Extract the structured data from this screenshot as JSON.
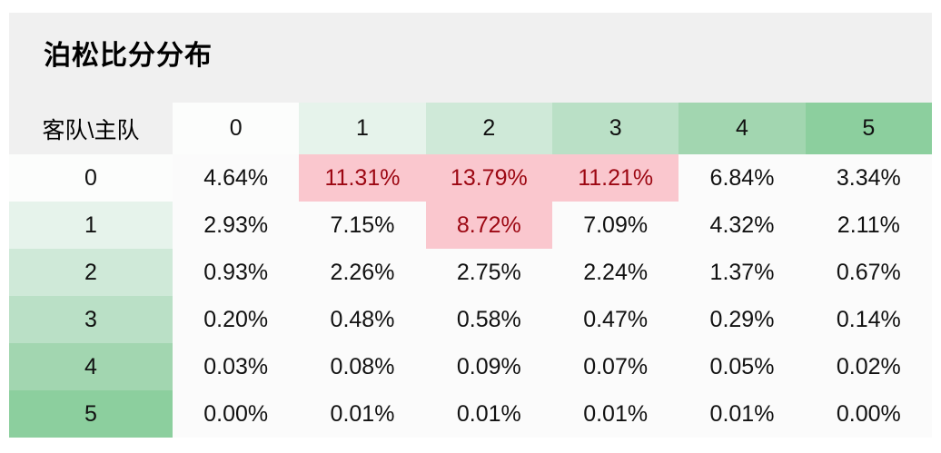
{
  "title": "泊松比分分布",
  "table": {
    "corner_label": "客队\\主队",
    "col_headers": [
      "0",
      "1",
      "2",
      "3",
      "4",
      "5"
    ],
    "row_headers": [
      "0",
      "1",
      "2",
      "3",
      "4",
      "5"
    ],
    "rows": [
      [
        "4.64%",
        "11.31%",
        "13.79%",
        "11.21%",
        "6.84%",
        "3.34%"
      ],
      [
        "2.93%",
        "7.15%",
        "8.72%",
        "7.09%",
        "4.32%",
        "2.11%"
      ],
      [
        "0.93%",
        "2.26%",
        "2.75%",
        "2.24%",
        "1.37%",
        "0.67%"
      ],
      [
        "0.20%",
        "0.48%",
        "0.58%",
        "0.47%",
        "0.29%",
        "0.14%"
      ],
      [
        "0.03%",
        "0.08%",
        "0.09%",
        "0.07%",
        "0.05%",
        "0.02%"
      ],
      [
        "0.00%",
        "0.01%",
        "0.01%",
        "0.01%",
        "0.01%",
        "0.00%"
      ]
    ],
    "highlighted_cells": [
      [
        0,
        1
      ],
      [
        0,
        2
      ],
      [
        0,
        3
      ],
      [
        1,
        2
      ]
    ],
    "colors": {
      "green_scale": [
        "#fcfdfc",
        "#e6f3eb",
        "#cfe9d8",
        "#bae0c6",
        "#a2d6b0",
        "#8ccf9e"
      ],
      "cell_bg": "#fbfbfb",
      "highlight_bg": "#fac7ce",
      "highlight_text": "#9c0712",
      "panel_bg": "#f0f0f0",
      "text": "#111111"
    }
  },
  "chart_data": {
    "type": "heatmap",
    "title": "泊松比分分布",
    "corner_label": "客队\\主队",
    "columns_axis": "主队",
    "rows_axis": "客队",
    "columns": [
      0,
      1,
      2,
      3,
      4,
      5
    ],
    "rows": [
      0,
      1,
      2,
      3,
      4,
      5
    ],
    "values_percent": [
      [
        4.64,
        11.31,
        13.79,
        11.21,
        6.84,
        3.34
      ],
      [
        2.93,
        7.15,
        8.72,
        7.09,
        4.32,
        2.11
      ],
      [
        0.93,
        2.26,
        2.75,
        2.24,
        1.37,
        0.67
      ],
      [
        0.2,
        0.48,
        0.58,
        0.47,
        0.29,
        0.14
      ],
      [
        0.03,
        0.08,
        0.09,
        0.07,
        0.05,
        0.02
      ],
      [
        0.0,
        0.01,
        0.01,
        0.01,
        0.01,
        0.0
      ]
    ],
    "highlighted_cells_row_col": [
      [
        0,
        1
      ],
      [
        0,
        2
      ],
      [
        0,
        3
      ],
      [
        1,
        2
      ]
    ],
    "legend": "none",
    "header_color_scale": "white-to-green by score value",
    "highlight_meaning": "most likely scorelines (pink)"
  }
}
